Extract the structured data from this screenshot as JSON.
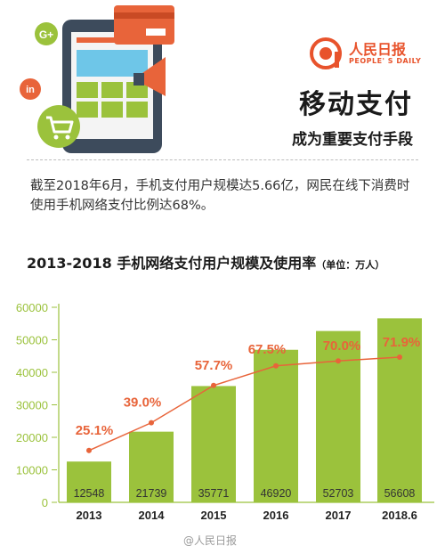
{
  "header": {
    "title": "移动支付",
    "subtitle": "成为重要支付手段",
    "logo_cn": "人民日报",
    "logo_en": "PEOPLE' S DAILY",
    "social_google": "G+",
    "social_linkedin": "in"
  },
  "description": "截至2018年6月，手机支付用户规模达5.66亿，网民在线下消费时使用手机网络支付比例达68%。",
  "chart_title": "2013-2018 手机网络支付用户规模及使用率",
  "chart_unit": "（单位：万人）",
  "watermark": "@人民日报",
  "colors": {
    "bar": "#9bc23c",
    "line": "#e8643a",
    "axis_label": "#9bc23c",
    "accent": "#e8532c"
  },
  "chart_data": {
    "type": "bar",
    "categories": [
      "2013",
      "2014",
      "2015",
      "2016",
      "2017",
      "2018.6"
    ],
    "series": [
      {
        "name": "",
        "type": "bar",
        "values": [
          12548,
          21739,
          35771,
          46920,
          52703,
          56608
        ]
      },
      {
        "name": "",
        "type": "line",
        "values": [
          25.1,
          39.0,
          57.7,
          67.5,
          70.0,
          71.9
        ]
      }
    ],
    "value_labels": [
      "12548",
      "21739",
      "35771",
      "46920",
      "52703",
      "56608"
    ],
    "rate_labels": [
      "25.1%",
      "39.0%",
      "57.7%",
      "67.5%",
      "70.0%",
      "71.9%"
    ],
    "yticks": [
      "0",
      "10000",
      "20000",
      "30000",
      "40000",
      "50000",
      "60000"
    ],
    "ylim": [
      0,
      60000
    ],
    "xlabel": "",
    "ylabel": "",
    "grid": false,
    "legend": "none"
  }
}
